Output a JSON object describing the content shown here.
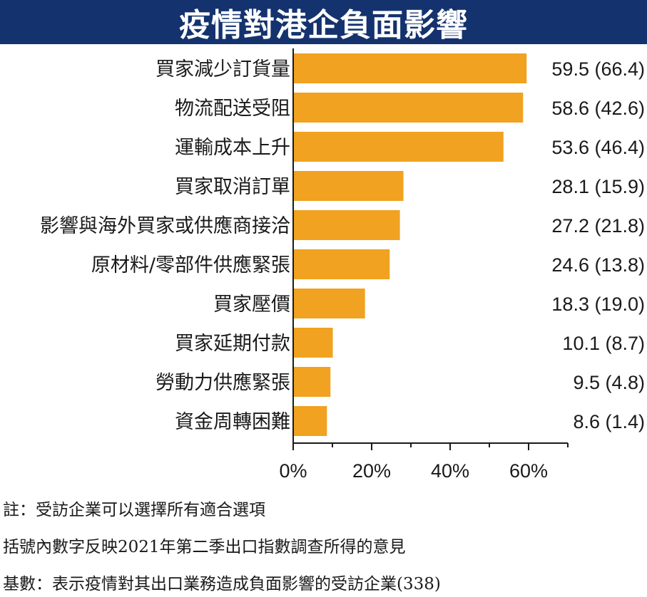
{
  "title": "疫情對港企負面影響",
  "chart_data": {
    "type": "bar",
    "orientation": "horizontal",
    "categories": [
      "買家減少訂貨量",
      "物流配送受阻",
      "運輸成本上升",
      "買家取消訂單",
      "影響與海外買家或供應商接洽",
      "原材料/零部件供應緊張",
      "買家壓價",
      "買家延期付款",
      "勞動力供應緊張",
      "資金周轉困難"
    ],
    "values": [
      59.5,
      58.6,
      53.6,
      28.1,
      27.2,
      24.6,
      18.3,
      10.1,
      9.5,
      8.6
    ],
    "value_labels": [
      "59.5 (66.4)",
      "58.6 (42.6)",
      "53.6 (46.4)",
      "28.1 (15.9)",
      "27.2 (21.8)",
      "24.6 (13.8)",
      "18.3 (19.0)",
      "10.1 (8.7)",
      "9.5 (4.8)",
      "8.6 (1.4)"
    ],
    "x_ticks": [
      "0%",
      "20%",
      "40%",
      "60%"
    ],
    "x_tick_values": [
      0,
      20,
      40,
      60
    ],
    "xlim": [
      0,
      70
    ],
    "bar_color": "#f0a220",
    "grid": false
  },
  "notes": [
    "註：受訪企業可以選擇所有適合選項",
    "括號內數字反映2021年第二季出口指數調查所得的意見",
    "基數：表示疫情對其出口業務造成負面影響的受訪企業(338)"
  ]
}
